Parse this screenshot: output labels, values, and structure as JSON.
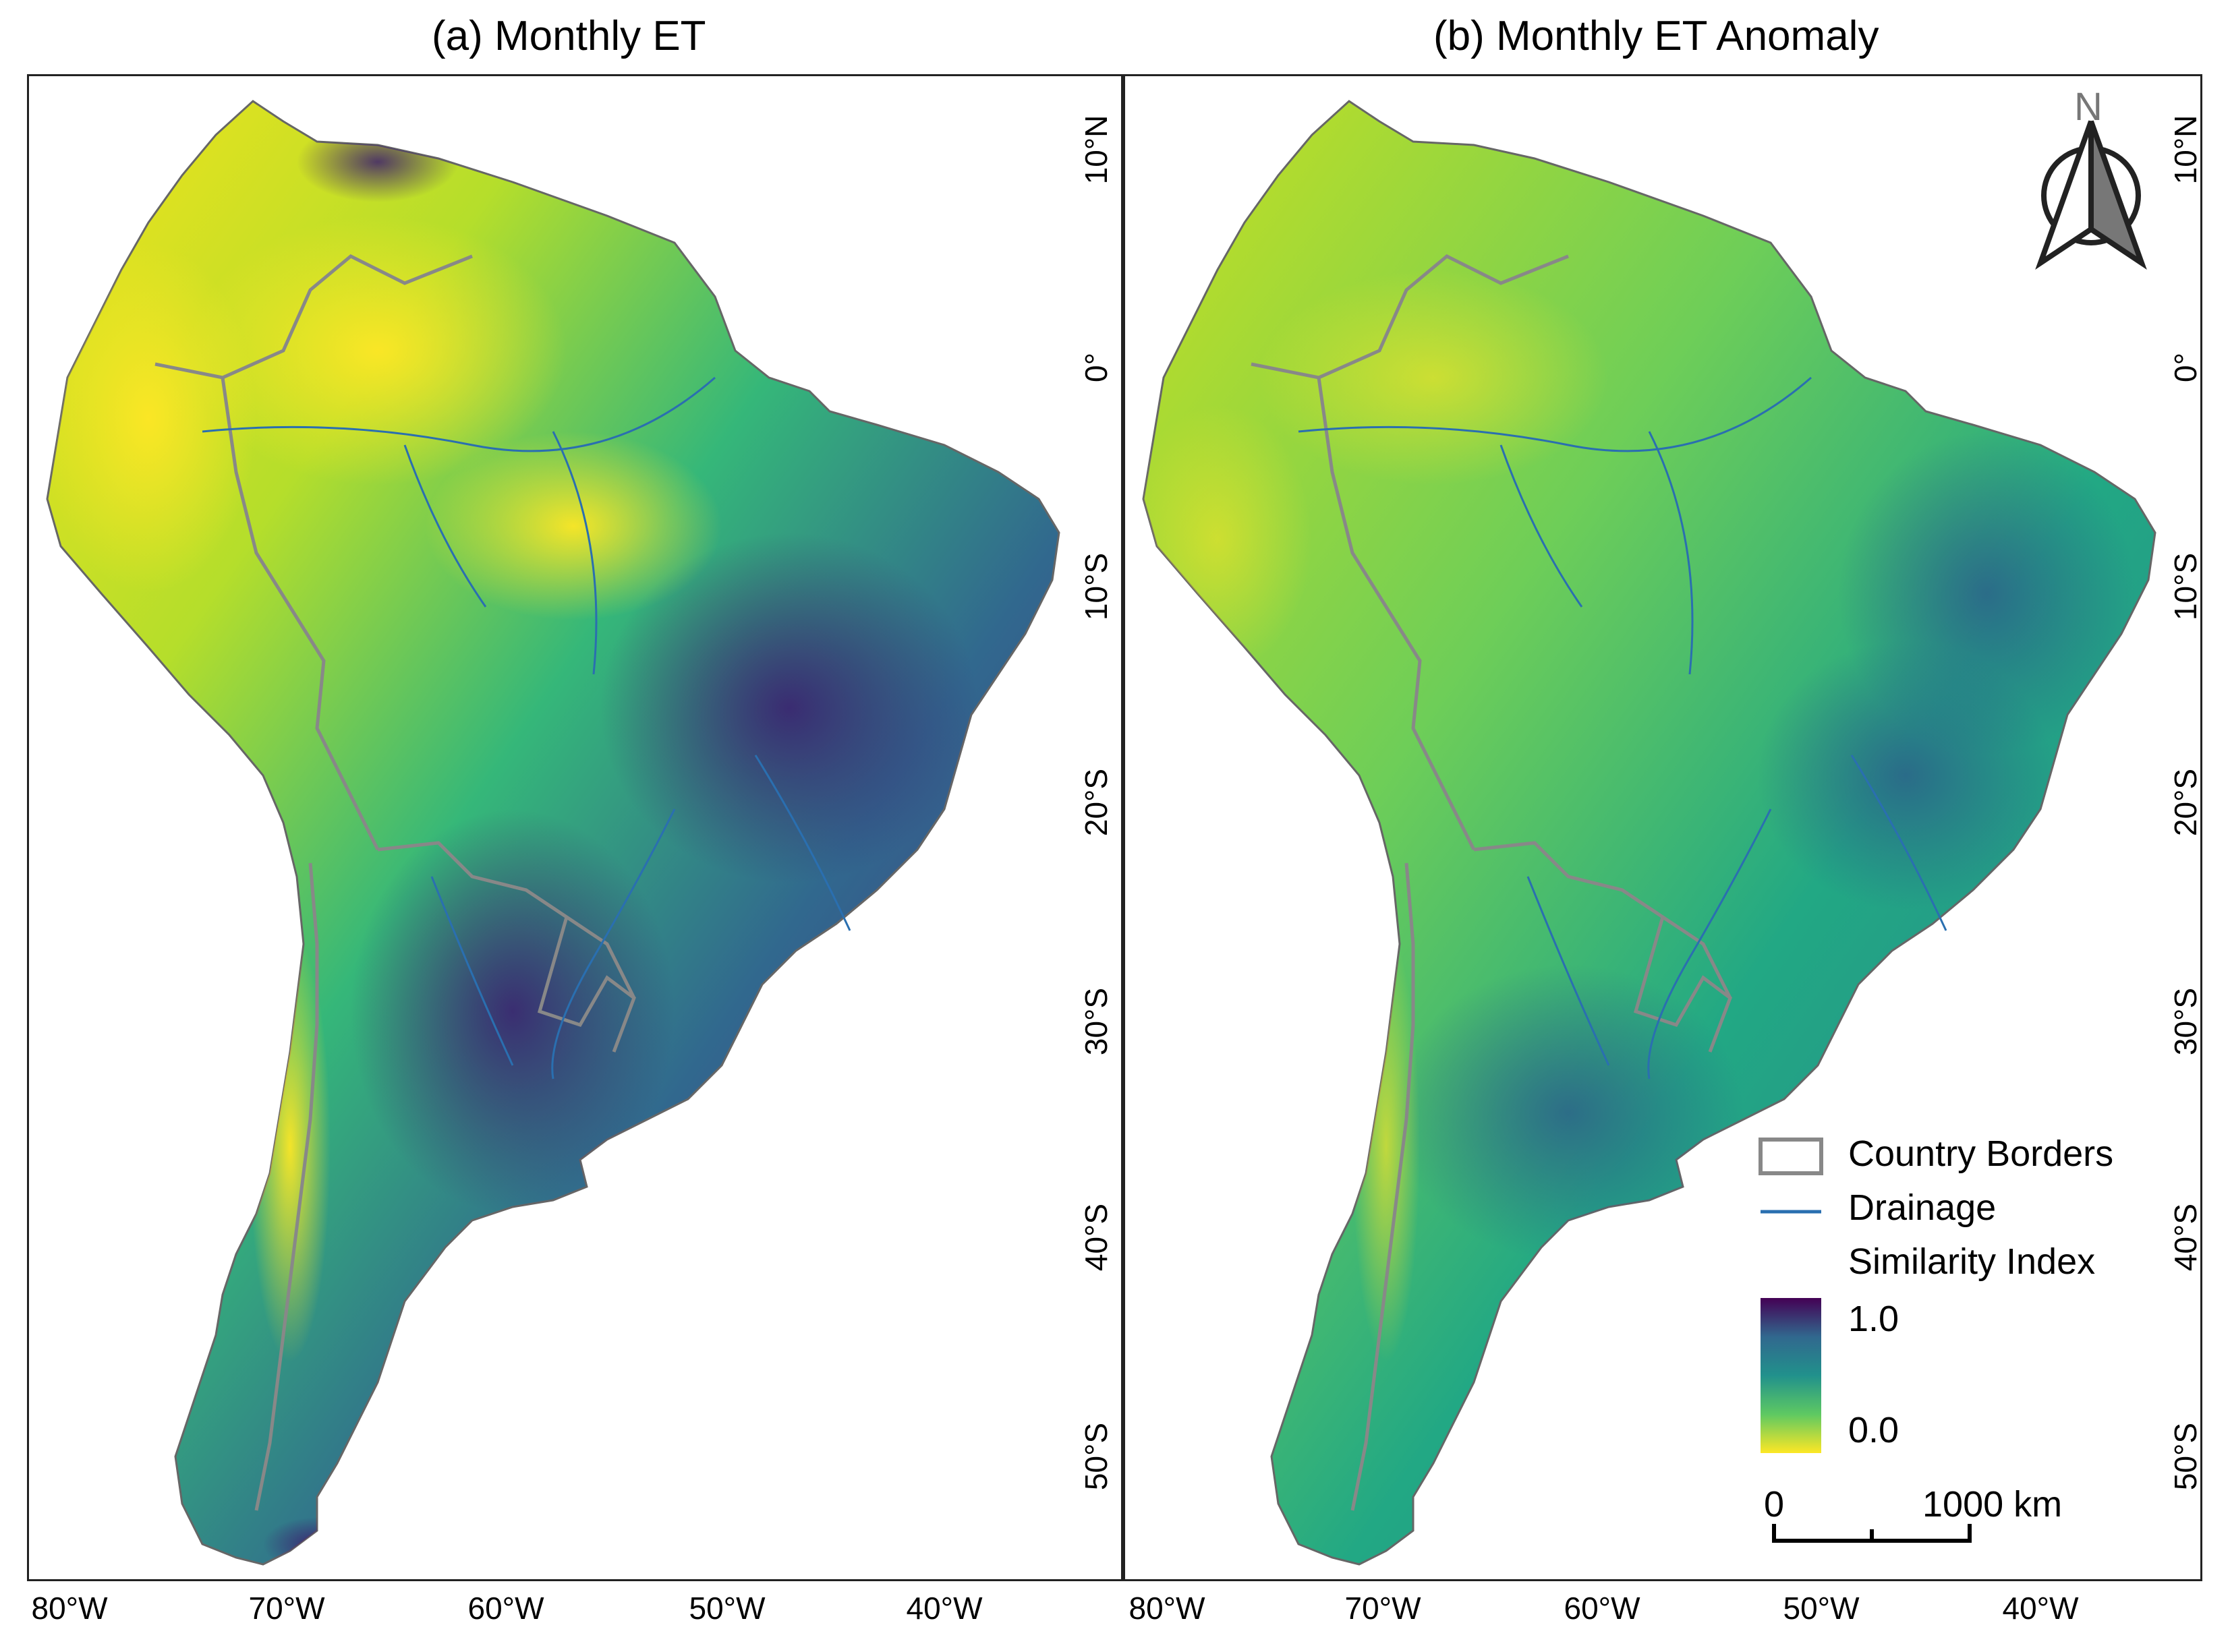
{
  "panels": [
    {
      "title": "(a) Monthly ET"
    },
    {
      "title": "(b) Monthly ET Anomaly"
    }
  ],
  "axes": {
    "lon_labels": [
      "80°W",
      "70°W",
      "60°W",
      "50°W",
      "40°W"
    ],
    "lat_labels": [
      "10°N",
      "0°",
      "10°S",
      "20°S",
      "30°S",
      "40°S",
      "50°S"
    ]
  },
  "north_arrow": {
    "label": "N"
  },
  "legend": {
    "border_label": "Country Borders",
    "drainage_label": "Drainage",
    "index_title": "Similarity Index",
    "max_label": "1.0",
    "min_label": "0.0",
    "scale_zero": "0",
    "scale_label": "1000 km"
  },
  "colors": {
    "low": "#f2e31b",
    "mid_low": "#7ed34f",
    "mid": "#20a386",
    "mid_high": "#2d708e",
    "high": "#440154",
    "border": "#888888",
    "drainage": "#2a6fb0"
  }
}
